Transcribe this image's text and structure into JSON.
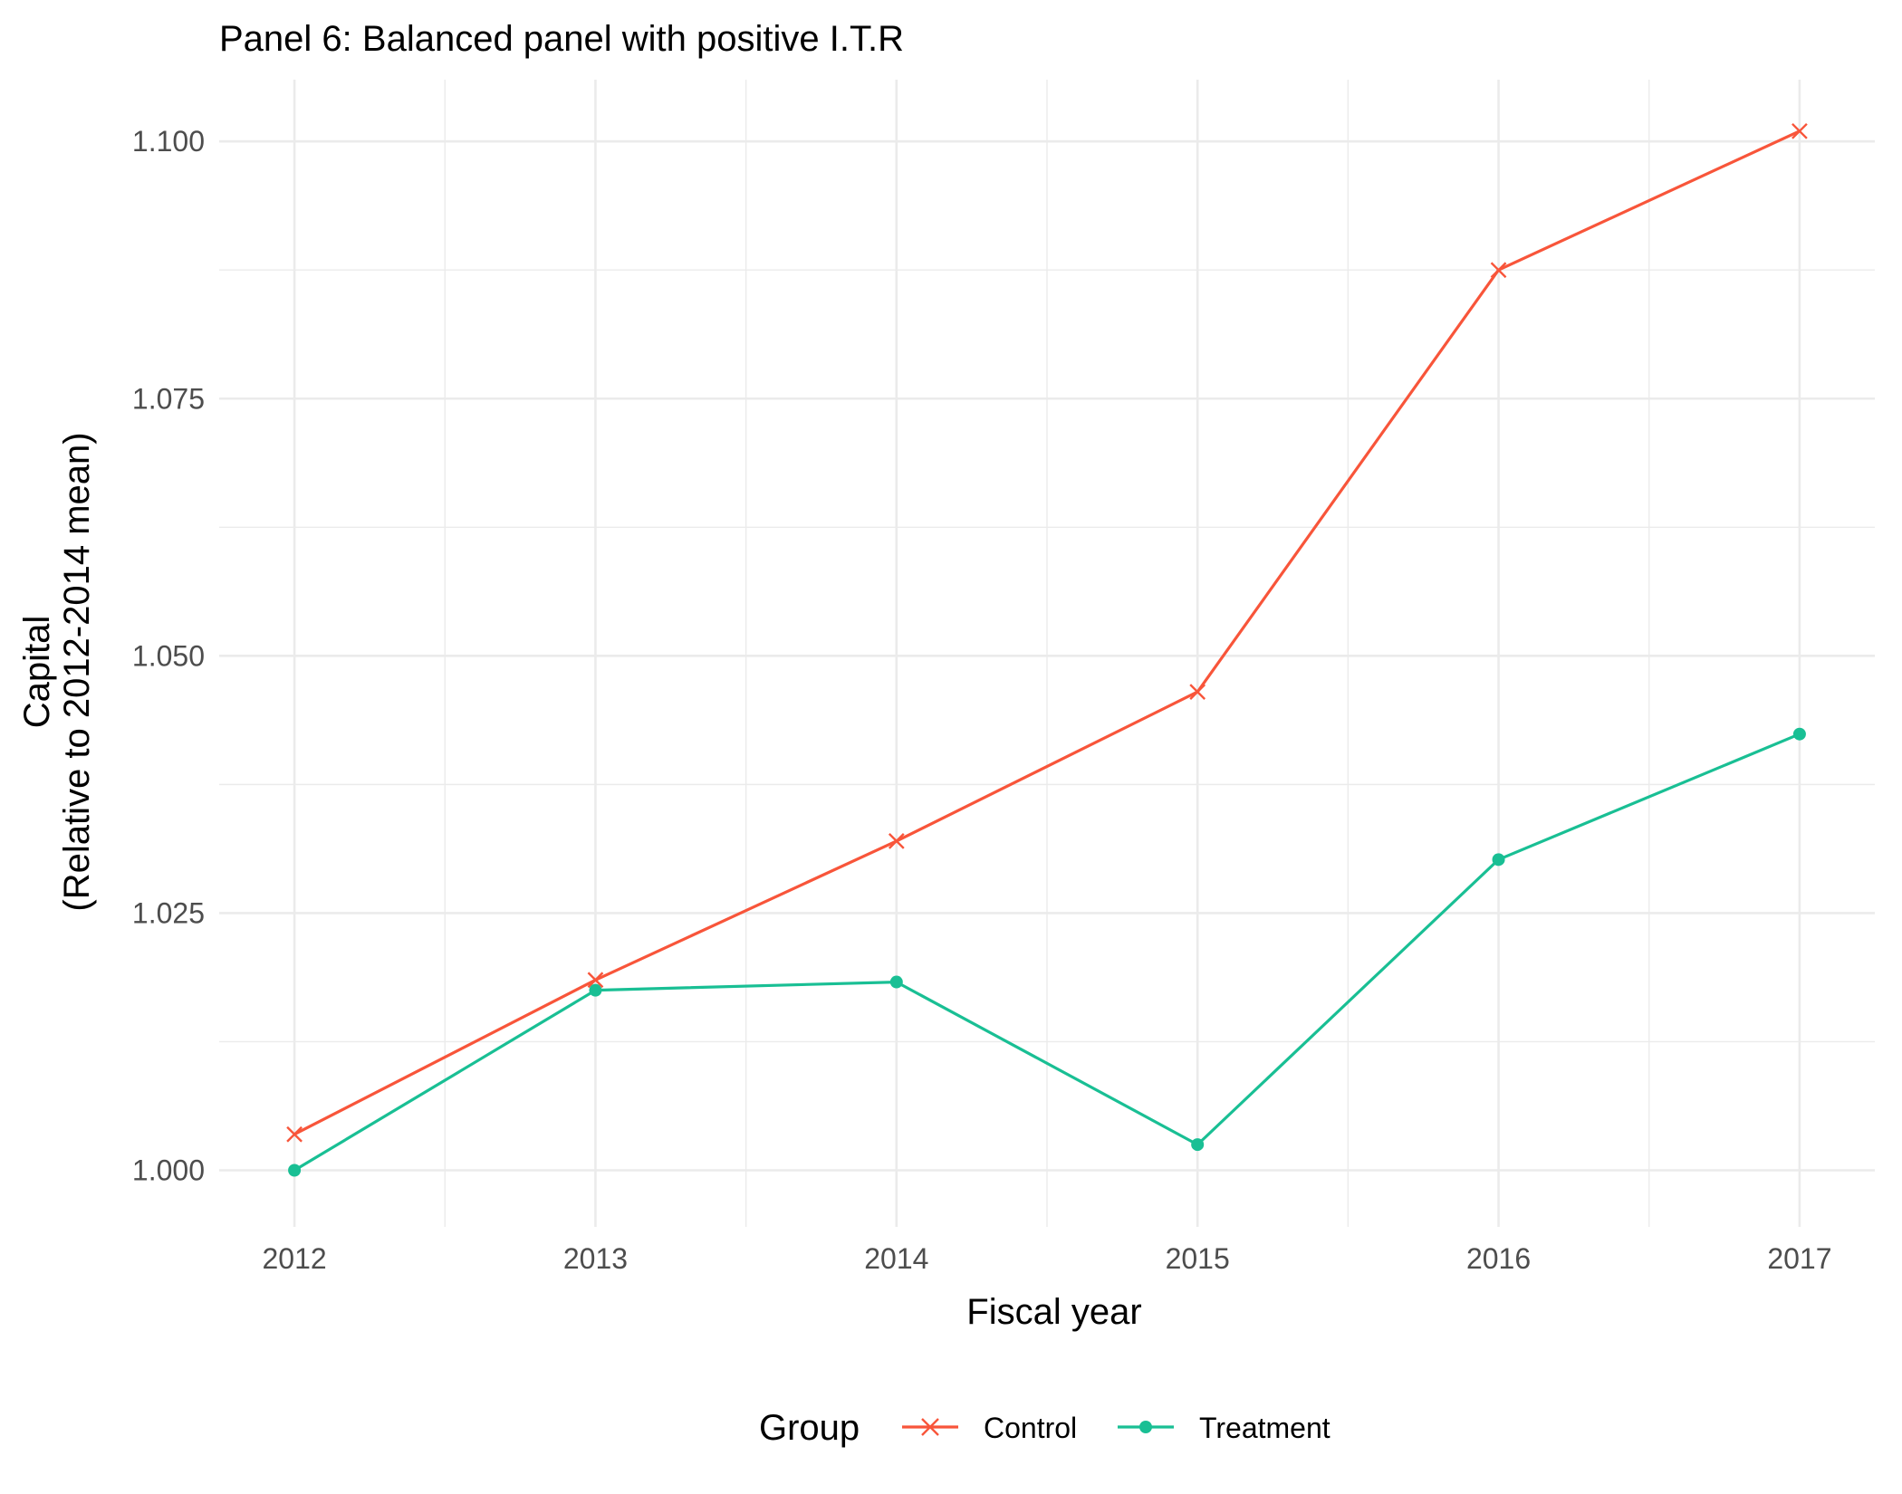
{
  "chart_data": {
    "type": "line",
    "title": "Panel 6: Balanced panel with positive I.T.R",
    "xlabel": "Fiscal year",
    "ylabel_line1": "Capital",
    "ylabel_line2": "(Relative to 2012-2014 mean)",
    "x": [
      2012,
      2013,
      2014,
      2015,
      2016,
      2017
    ],
    "x_tick_labels": [
      "2012",
      "2013",
      "2014",
      "2015",
      "2016",
      "2017"
    ],
    "y_tick_labels": [
      "1.000",
      "1.025",
      "1.050",
      "1.075",
      "1.100"
    ],
    "y_ticks": [
      1.0,
      1.025,
      1.05,
      1.075,
      1.1
    ],
    "xlim": [
      2011.75,
      2017.25
    ],
    "ylim": [
      0.9945,
      1.106
    ],
    "grid": true,
    "legend_title": "Group",
    "legend_position": "bottom",
    "series": [
      {
        "name": "Control",
        "color": "#F8553A",
        "marker": "cross",
        "values": [
          1.0035,
          1.0185,
          1.032,
          1.0465,
          1.0875,
          1.101
        ]
      },
      {
        "name": "Treatment",
        "color": "#19BF94",
        "marker": "circle",
        "values": [
          1.0,
          1.0175,
          1.0183,
          1.0025,
          1.0302,
          1.0424
        ]
      }
    ]
  }
}
